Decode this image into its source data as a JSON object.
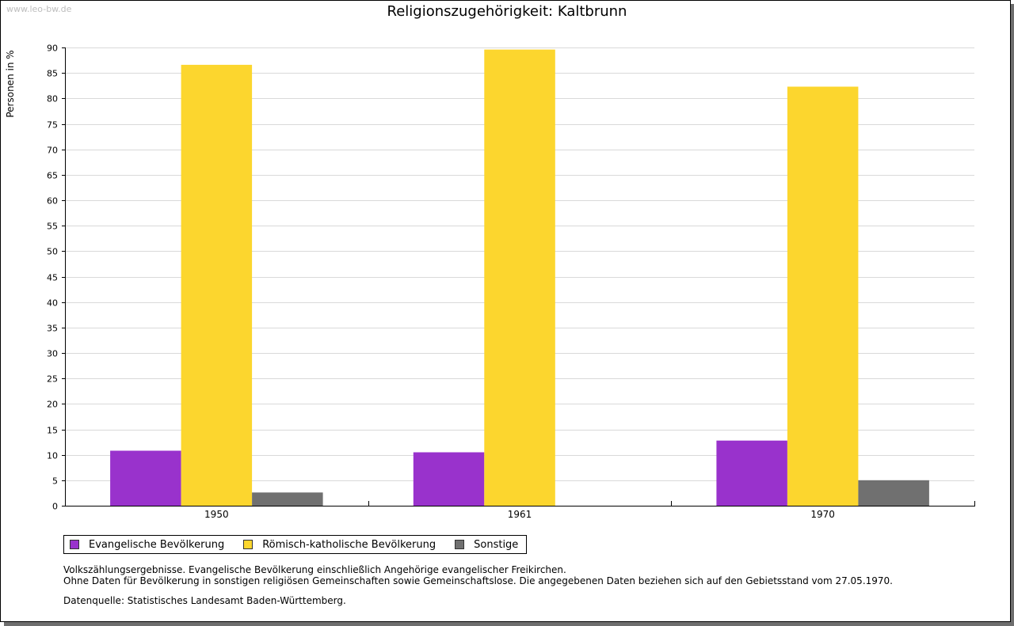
{
  "watermark": "www.leo-bw.de",
  "chart_data": {
    "type": "bar",
    "title": "Religionszugehörigkeit: Kaltbrunn",
    "ylabel": "Personen in %",
    "xlabel": "",
    "categories": [
      "1950",
      "1961",
      "1970"
    ],
    "ylim": [
      0,
      90
    ],
    "yticks": [
      0,
      5,
      10,
      15,
      20,
      25,
      30,
      35,
      40,
      45,
      50,
      55,
      60,
      65,
      70,
      75,
      80,
      85,
      90
    ],
    "grid": true,
    "legend_position": "bottom",
    "series": [
      {
        "name": "Evangelische Bevölkerung",
        "color": "#9932cc",
        "values": [
          10.8,
          10.5,
          12.8
        ]
      },
      {
        "name": "Römisch-katholische Bevölkerung",
        "color": "#fcd62e",
        "values": [
          86.6,
          89.6,
          82.3
        ]
      },
      {
        "name": "Sonstige",
        "color": "#707070",
        "values": [
          2.6,
          null,
          5.0
        ]
      }
    ]
  },
  "notes": {
    "line1": "Volkszählungsergebnisse. Evangelische Bevölkerung einschließlich Angehörige evangelischer Freikirchen.",
    "line2": "Ohne Daten für Bevölkerung in sonstigen religiösen Gemeinschaften sowie Gemeinschaftslose. Die angegebenen Daten beziehen sich auf den Gebietsstand vom 27.05.1970."
  },
  "source": "Datenquelle: Statistisches Landesamt Baden-Württemberg."
}
